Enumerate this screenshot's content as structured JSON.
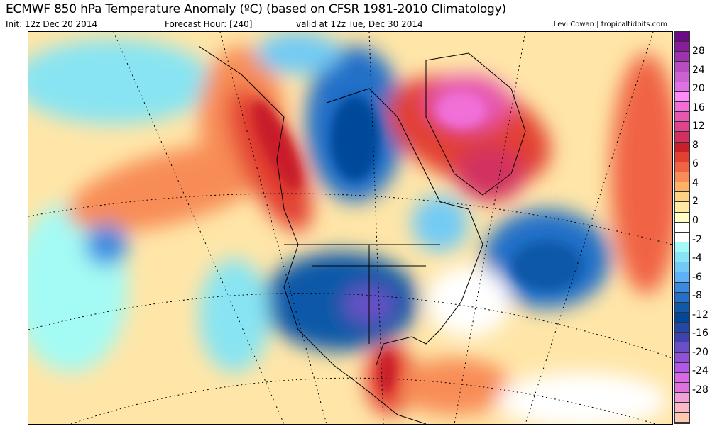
{
  "header": {
    "title": "ECMWF 850 hPa Temperature Anomaly (ºC) (based on CFSR 1981-2010 Climatology)",
    "init": "Init: 12z Dec 20 2014",
    "forecast_hour": "Forecast Hour: [240]",
    "valid": "valid at 12z Tue, Dec 30 2014",
    "credit": "Levi Cowan | tropicaltidbits.com"
  },
  "colorbar": {
    "labels": [
      "28",
      "24",
      "20",
      "16",
      "12",
      "8",
      "6",
      "4",
      "2",
      "0",
      "-2",
      "-4",
      "-6",
      "-8",
      "-12",
      "-16",
      "-20",
      "-24",
      "-28"
    ],
    "colors": [
      "#6c0a88",
      "#8a1c9c",
      "#a032b0",
      "#b84cc0",
      "#cc62d2",
      "#e070e6",
      "#ff88fa",
      "#f46cd8",
      "#e658b0",
      "#e0448c",
      "#d23060",
      "#c81f2a",
      "#e24032",
      "#f06444",
      "#f88c56",
      "#ffb264",
      "#ffd282",
      "#ffe8a2",
      "#ffffc4",
      "#ffffff",
      "#ffffff",
      "#a4faf4",
      "#88e4f2",
      "#72caf4",
      "#5eb0f8",
      "#3a8ae2",
      "#2270c8",
      "#1058a8",
      "#00489a",
      "#2448a8",
      "#4040b0",
      "#6a50c8",
      "#9050d8",
      "#b058e8",
      "#d868e8",
      "#e070e0",
      "#f0a0d8",
      "#f8b8c8",
      "#fcc8b0"
    ]
  },
  "map_colors": {
    "warm_strong": "#c81f2a",
    "warm": "#f06444",
    "warm_light": "#ffb264",
    "cold": "#2270c8",
    "cold_strong": "#4040b0",
    "cool_light": "#88e4f2",
    "magenta": "#e658b0"
  }
}
